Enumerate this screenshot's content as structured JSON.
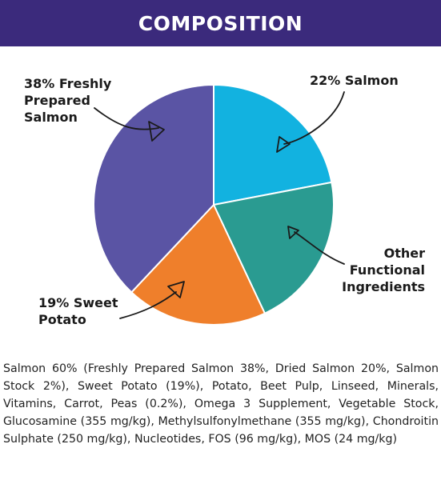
{
  "header": {
    "title": "COMPOSITION"
  },
  "chart_data": {
    "type": "pie",
    "slices": [
      {
        "label": "22% Salmon",
        "value": 22,
        "color": "#12b2e0"
      },
      {
        "label": "Other Functional Ingredients",
        "value": 21,
        "color": "#2a9b91"
      },
      {
        "label": "19% Sweet Potato",
        "value": 19,
        "color": "#ef7f2b"
      },
      {
        "label": "38% Freshly Prepared Salmon",
        "value": 38,
        "color": "#5a54a4"
      }
    ],
    "labels": {
      "freshly_prepared": [
        "38% Freshly",
        "Prepared",
        "Salmon"
      ],
      "salmon22": [
        "22% Salmon"
      ],
      "other": [
        "Other",
        "Functional",
        "Ingredients"
      ],
      "sweet_potato": [
        "19% Sweet",
        "Potato"
      ]
    }
  },
  "ingredients_text": "Salmon 60% (Freshly Prepared Salmon 38%, Dried Salmon 20%, Salmon Stock 2%), Sweet Potato (19%), Potato, Beet Pulp, Linseed, Minerals, Vitamins, Carrot, Peas (0.2%), Omega 3 Supplement, Vegetable Stock, Glucosamine (355 mg/kg), Methylsulfonylmethane (355 mg/kg), Chondroitin Sulphate (250 mg/kg), Nucleotides, FOS (96 mg/kg), MOS (24 mg/kg)"
}
